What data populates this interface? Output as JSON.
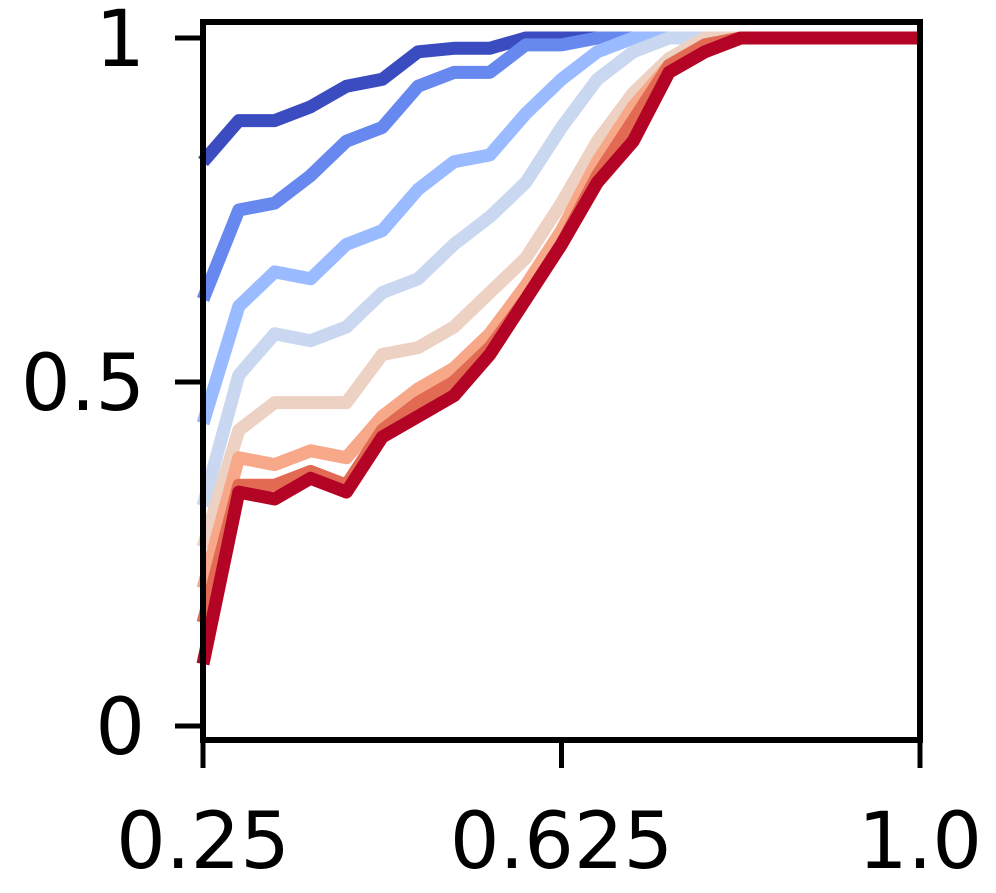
{
  "chart_data": {
    "type": "line",
    "title": "",
    "xlabel": "",
    "ylabel": "",
    "xlim": [
      0.25,
      1.0
    ],
    "ylim": [
      0,
      1
    ],
    "grid": false,
    "legend": "none",
    "x_ticks": [
      {
        "value": 0.25,
        "label": "0.25"
      },
      {
        "value": 0.625,
        "label": "0.625"
      },
      {
        "value": 1.0,
        "label": "1.0"
      }
    ],
    "y_ticks": [
      {
        "value": 0,
        "label": "0"
      },
      {
        "value": 0.5,
        "label": "0.5"
      },
      {
        "value": 1,
        "label": "1"
      }
    ],
    "x": [
      0.25,
      0.2875,
      0.325,
      0.3625,
      0.4,
      0.4375,
      0.475,
      0.5125,
      0.55,
      0.5875,
      0.625,
      0.6625,
      0.7,
      0.7375,
      0.775,
      0.8125,
      0.85,
      0.8875,
      0.925,
      0.9625,
      1.0
    ],
    "series": [
      {
        "color": "#3b4cc0",
        "values": [
          0.82,
          0.88,
          0.88,
          0.9,
          0.93,
          0.94,
          0.98,
          0.985,
          0.985,
          1.0,
          1.0,
          1.0,
          1.0,
          1.0,
          1.0,
          1.0,
          1.0,
          1.0,
          1.0,
          1.0,
          1.0
        ]
      },
      {
        "color": "#6788ee",
        "values": [
          0.62,
          0.75,
          0.76,
          0.8,
          0.85,
          0.87,
          0.93,
          0.95,
          0.95,
          0.99,
          0.99,
          1.0,
          1.0,
          1.0,
          1.0,
          1.0,
          1.0,
          1.0,
          1.0,
          1.0,
          1.0
        ]
      },
      {
        "color": "#9abbff",
        "values": [
          0.44,
          0.61,
          0.66,
          0.65,
          0.7,
          0.72,
          0.78,
          0.82,
          0.83,
          0.89,
          0.94,
          0.98,
          1.0,
          1.0,
          1.0,
          1.0,
          1.0,
          1.0,
          1.0,
          1.0,
          1.0
        ]
      },
      {
        "color": "#c9d7f0",
        "values": [
          0.32,
          0.51,
          0.57,
          0.56,
          0.58,
          0.63,
          0.65,
          0.7,
          0.74,
          0.79,
          0.87,
          0.94,
          0.98,
          1.0,
          1.0,
          1.0,
          1.0,
          1.0,
          1.0,
          1.0,
          1.0
        ]
      },
      {
        "color": "#edd1c2",
        "values": [
          0.26,
          0.43,
          0.47,
          0.47,
          0.47,
          0.54,
          0.55,
          0.58,
          0.63,
          0.68,
          0.76,
          0.85,
          0.92,
          0.97,
          1.0,
          1.0,
          1.0,
          1.0,
          1.0,
          1.0,
          1.0
        ]
      },
      {
        "color": "#f7a889",
        "values": [
          0.2,
          0.39,
          0.38,
          0.4,
          0.39,
          0.45,
          0.49,
          0.52,
          0.57,
          0.64,
          0.72,
          0.82,
          0.9,
          0.96,
          0.99,
          1.0,
          1.0,
          1.0,
          1.0,
          1.0,
          1.0
        ]
      },
      {
        "color": "#e26952",
        "values": [
          0.15,
          0.35,
          0.35,
          0.37,
          0.35,
          0.43,
          0.47,
          0.5,
          0.55,
          0.62,
          0.7,
          0.8,
          0.88,
          0.96,
          0.99,
          1.0,
          1.0,
          1.0,
          1.0,
          1.0,
          1.0
        ]
      },
      {
        "color": "#b40426",
        "values": [
          0.09,
          0.34,
          0.33,
          0.36,
          0.34,
          0.42,
          0.45,
          0.48,
          0.54,
          0.62,
          0.7,
          0.79,
          0.85,
          0.95,
          0.98,
          1.0,
          1.0,
          1.0,
          1.0,
          1.0,
          1.0
        ]
      }
    ]
  }
}
